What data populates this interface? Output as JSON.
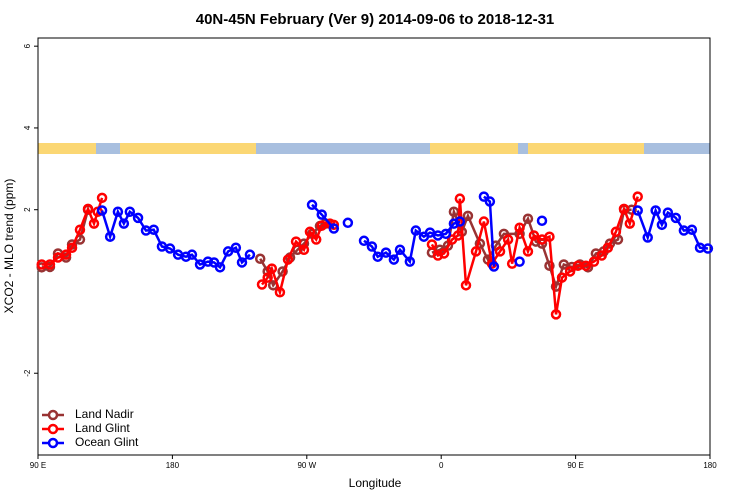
{
  "chart_data": {
    "type": "line",
    "title": "40N-45N February (Ver 9)   2014-09-06 to 2018-12-31",
    "x_label": "Longitude",
    "y_label": "XCO2 - MLO trend (ppm)",
    "xlim": [
      90,
      540
    ],
    "ylim": [
      -4,
      6.2
    ],
    "xticks": [
      {
        "value": 90,
        "label": "90 E"
      },
      180,
      {
        "value": 270,
        "label": "90 W"
      },
      {
        "value": 360,
        "label": "0"
      },
      {
        "value": 450,
        "label": "90 E"
      },
      {
        "value": 540,
        "label": "180"
      }
    ],
    "yticks": [
      -2,
      2,
      4,
      6
    ],
    "legend": "bottom-left",
    "series": [
      {
        "name": "Land Nadir",
        "color": "#993333",
        "x": [
          92.5,
          98,
          103.4,
          108.8,
          112.8,
          118.1,
          123.5,
          null,
          238.8,
          243.8,
          247.5,
          253.8,
          258.8,
          263.8,
          268.1,
          273.5,
          278.8,
          282.5,
          null,
          353.8,
          359.1,
          364.5,
          368.5,
          373.8,
          377.9,
          385.9,
          391.3,
          396.6,
          402,
          412.5,
          418.1,
          423.4,
          427.5,
          432.5,
          436.9,
          442.1,
          447.5,
          452.9,
          458.3,
          463.6,
          468.8,
          473,
          478.4,
          482.5,
          487.5
        ],
        "values": [
          0.59,
          0.6,
          0.93,
          0.83,
          1.15,
          1.27,
          2.0,
          null,
          0.8,
          0.49,
          0.15,
          0.49,
          0.83,
          1.02,
          1.17,
          1.41,
          1.6,
          1.66,
          null,
          0.95,
          1.02,
          1.12,
          1.95,
          1.46,
          1.85,
          1.17,
          0.78,
          1.12,
          1.41,
          1.41,
          1.78,
          1.22,
          1.17,
          0.63,
          0.12,
          0.66,
          0.6,
          0.66,
          0.59,
          0.93,
          0.98,
          1.17,
          1.27,
          2.0,
          2.0
        ]
      },
      {
        "name": "Land Glint",
        "color": "#ff0000",
        "x": [
          92.5,
          98,
          103.4,
          108.8,
          112.8,
          118.1,
          123.5,
          127.5,
          130,
          132.9,
          null,
          240,
          243.8,
          246.6,
          252,
          257.4,
          262.8,
          268.1,
          272.1,
          276.3,
          280,
          285.5,
          288.1,
          null,
          353.8,
          357.8,
          361.9,
          367.3,
          371.3,
          372.5,
          376.6,
          383.3,
          388.6,
          394,
          399.4,
          404.8,
          407.5,
          412.5,
          418.1,
          422.1,
          427.5,
          432.5,
          436.9,
          440.9,
          446.3,
          451.6,
          456.9,
          462.3,
          467.5,
          471.6,
          477,
          482.4,
          486.3,
          491.6
        ],
        "values": [
          0.66,
          0.66,
          0.83,
          0.9,
          1.07,
          1.51,
          2.02,
          1.66,
          1.95,
          2.29,
          null,
          0.17,
          0.34,
          0.56,
          -0.02,
          0.78,
          1.22,
          1.02,
          1.46,
          1.27,
          1.61,
          1.66,
          1.63,
          null,
          1.15,
          0.88,
          0.93,
          1.27,
          1.37,
          2.27,
          0.15,
          0.98,
          1.71,
          0.68,
          0.98,
          1.27,
          0.68,
          1.56,
          0.98,
          1.37,
          1.27,
          1.34,
          -0.56,
          0.34,
          0.49,
          0.63,
          0.63,
          0.73,
          0.88,
          1.07,
          1.46,
          2.02,
          1.66,
          2.32
        ]
      },
      {
        "name": "Ocean Glint",
        "color": "#0000ff",
        "x": [
          132.9,
          138.3,
          143.5,
          147.5,
          151.5,
          157,
          162.3,
          167.5,
          173,
          178.4,
          183.8,
          189.1,
          193.1,
          198.5,
          203.8,
          207.9,
          211.9,
          217.3,
          222.5,
          226.6,
          231.9,
          null,
          273.5,
          280,
          288.1,
          null,
          297.5,
          null,
          308.3,
          313.6,
          317.5,
          323,
          328.3,
          332.4,
          339,
          343,
          348.4,
          352.5,
          357.8,
          363.1,
          368.5,
          372.5,
          null,
          388.6,
          392.6,
          395.3,
          null,
          412.5,
          null,
          427.5,
          null,
          491.6,
          498.3,
          503.6,
          507.8,
          511.8,
          517.1,
          522.5,
          527.9,
          533.3,
          538.6
        ],
        "values": [
          1.98,
          1.34,
          1.95,
          1.66,
          1.95,
          1.8,
          1.49,
          1.51,
          1.1,
          1.05,
          0.9,
          0.85,
          0.9,
          0.66,
          0.73,
          0.71,
          0.59,
          0.98,
          1.07,
          0.71,
          0.9,
          null,
          2.12,
          1.88,
          1.54,
          null,
          1.68,
          null,
          1.24,
          1.1,
          0.85,
          0.95,
          0.78,
          1.02,
          0.73,
          1.49,
          1.34,
          1.44,
          1.37,
          1.41,
          1.66,
          1.71,
          null,
          2.32,
          2.2,
          0.61,
          null,
          0.73,
          null,
          1.73,
          null,
          1.98,
          1.32,
          1.98,
          1.63,
          1.93,
          1.8,
          1.49,
          1.51,
          1.07,
          1.05
        ]
      }
    ]
  }
}
